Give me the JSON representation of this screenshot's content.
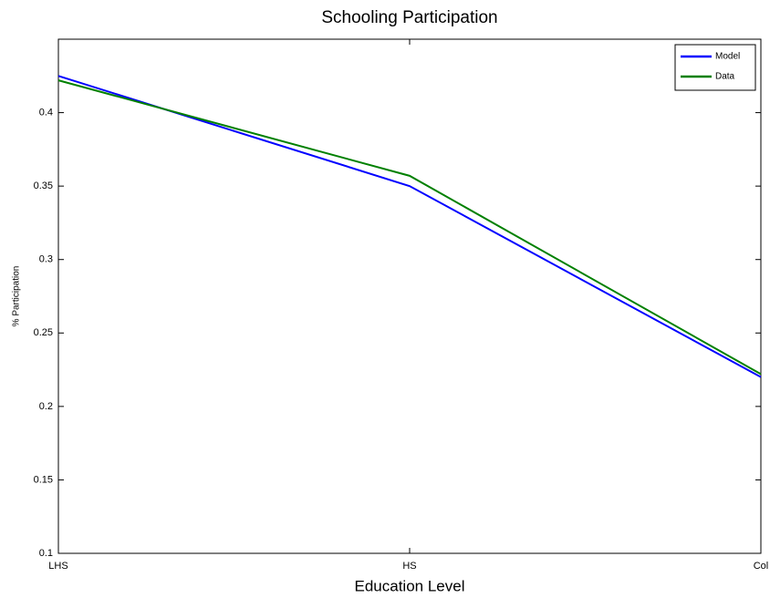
{
  "chart_data": {
    "type": "line",
    "title": "Schooling Participation",
    "x_label": "Education Level",
    "y_label": "% Participation",
    "categories": [
      "LHS",
      "HS",
      "Col"
    ],
    "series": [
      {
        "name": "Model",
        "color": "#0000ff",
        "values": [
          0.425,
          0.35,
          0.22
        ]
      },
      {
        "name": "Data",
        "color": "#008000",
        "values": [
          0.422,
          0.357,
          0.222
        ]
      }
    ],
    "ylim": [
      0.1,
      0.45
    ],
    "yticks": [
      0.1,
      0.15,
      0.2,
      0.25,
      0.3,
      0.35,
      0.4
    ],
    "grid": false,
    "legend": "top-right"
  }
}
